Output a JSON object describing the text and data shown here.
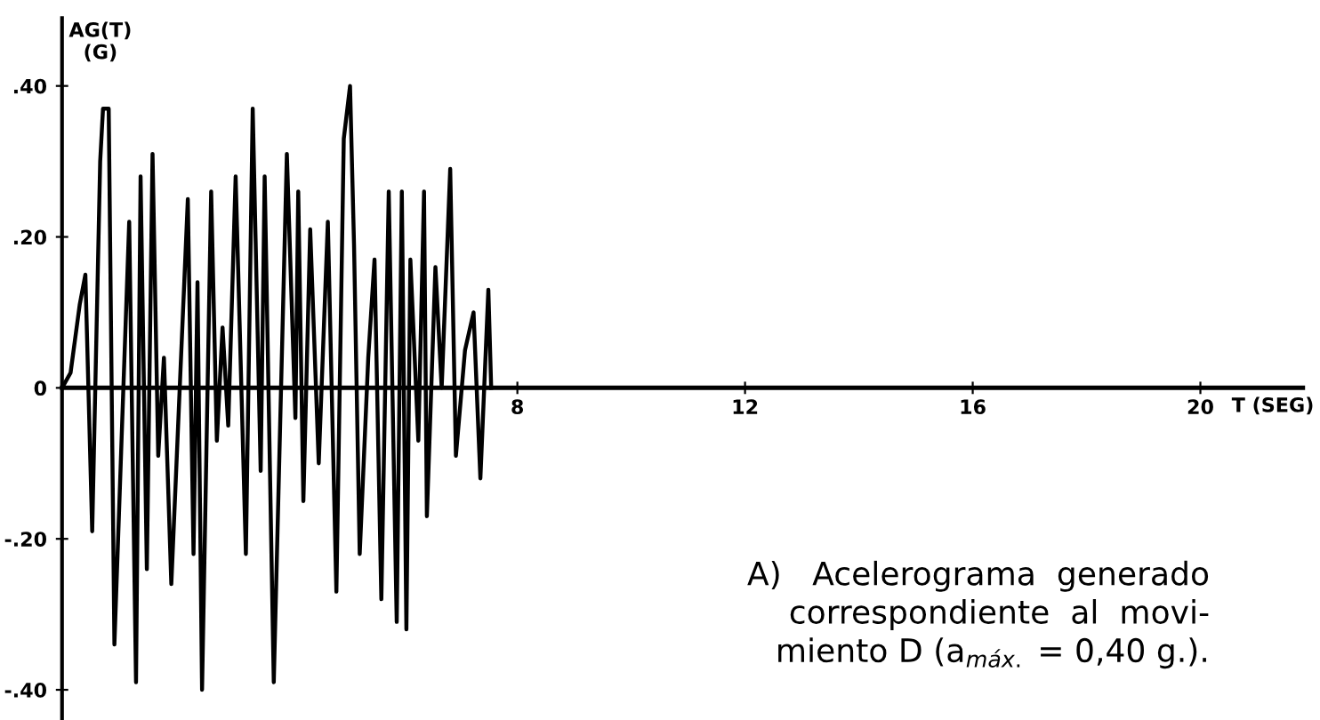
{
  "chart_data": {
    "type": "line",
    "ylabel": "AG(T)\n(G)",
    "xlabel": "T (SEG)",
    "x": [
      0,
      0.15,
      0.31,
      0.41,
      0.53,
      0.67,
      0.72,
      0.82,
      0.92,
      1.18,
      1.3,
      1.38,
      1.49,
      1.59,
      1.69,
      1.79,
      1.92,
      2.21,
      2.31,
      2.38,
      2.46,
      2.62,
      2.72,
      2.82,
      2.92,
      3.05,
      3.23,
      3.35,
      3.49,
      3.56,
      3.72,
      3.95,
      4.1,
      4.15,
      4.24,
      4.36,
      4.51,
      4.67,
      4.82,
      4.95,
      5.06,
      5.13,
      5.23,
      5.38,
      5.49,
      5.61,
      5.74,
      5.88,
      5.97,
      6.05,
      6.12,
      6.26,
      6.36,
      6.41,
      6.56,
      6.67,
      6.82,
      6.92,
      7.08,
      7.23,
      7.35,
      7.49,
      7.54
    ],
    "series": [
      {
        "color": "#000000",
        "values": [
          0,
          0.02,
          0.11,
          0.15,
          -0.19,
          0.3,
          0.37,
          0.37,
          -0.34,
          0.22,
          -0.39,
          0.28,
          -0.24,
          0.31,
          -0.09,
          0.04,
          -0.26,
          0.25,
          -0.22,
          0.14,
          -0.4,
          0.26,
          -0.07,
          0.08,
          -0.05,
          0.28,
          -0.22,
          0.37,
          -0.11,
          0.28,
          -0.39,
          0.31,
          -0.04,
          0.26,
          -0.15,
          0.21,
          -0.1,
          0.22,
          -0.27,
          0.33,
          0.4,
          0.19,
          -0.22,
          0.04,
          0.17,
          -0.28,
          0.26,
          -0.31,
          0.26,
          -0.32,
          0.17,
          -0.07,
          0.26,
          -0.17,
          0.16,
          0.0,
          0.29,
          -0.09,
          0.05,
          0.1,
          -0.12,
          0.13,
          0
        ]
      }
    ],
    "xlim": [
      0,
      21.8
    ],
    "ylim": [
      -0.44,
      0.49
    ],
    "xticks": [
      8,
      12,
      16,
      20
    ],
    "yticks": [
      {
        "value": 0.4,
        "label": ".40"
      },
      {
        "value": 0.2,
        "label": ".20"
      },
      0,
      {
        "value": -0.2,
        "label": "-.20"
      },
      {
        "value": -0.4,
        "label": "-.40"
      }
    ],
    "grid": false,
    "line_style": "solid",
    "annotations": [
      "A)   Acelerograma  generado\ncorrespondiente  al  movi-\nmiento D (a$_{máx.}$ = 0,40 g.)."
    ]
  }
}
